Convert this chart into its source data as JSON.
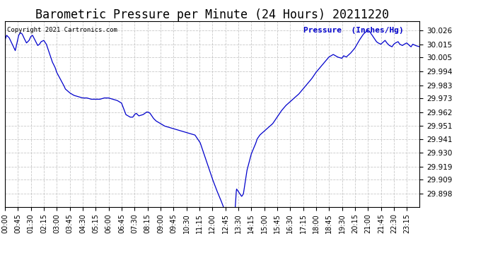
{
  "title": "Barometric Pressure per Minute (24 Hours) 20211220",
  "title_fontsize": 12,
  "copyright_text": "Copyright 2021 Cartronics.com",
  "legend_text": "Pressure  (Inches/Hg)",
  "line_color": "#0000CC",
  "background_color": "#FFFFFF",
  "grid_color": "#BBBBBB",
  "yticks": [
    29.898,
    29.909,
    29.919,
    29.93,
    29.941,
    29.951,
    29.962,
    29.973,
    29.983,
    29.994,
    30.005,
    30.015,
    30.026
  ],
  "ymin": 29.888,
  "ymax": 30.033,
  "xtick_labels": [
    "00:00",
    "00:45",
    "01:30",
    "02:15",
    "03:00",
    "03:45",
    "04:30",
    "05:15",
    "06:00",
    "06:45",
    "07:30",
    "08:15",
    "09:00",
    "09:45",
    "10:30",
    "11:15",
    "12:00",
    "12:45",
    "13:30",
    "14:15",
    "15:00",
    "15:45",
    "16:30",
    "17:15",
    "18:00",
    "18:45",
    "19:30",
    "20:15",
    "21:00",
    "21:45",
    "22:30",
    "23:15"
  ],
  "waypoints": [
    [
      0.0,
      30.018
    ],
    [
      0.1,
      30.022
    ],
    [
      0.25,
      30.02
    ],
    [
      0.5,
      30.013
    ],
    [
      0.6,
      30.01
    ],
    [
      0.7,
      30.016
    ],
    [
      0.8,
      30.022
    ],
    [
      0.9,
      30.024
    ],
    [
      1.0,
      30.023
    ],
    [
      1.1,
      30.02
    ],
    [
      1.25,
      30.016
    ],
    [
      1.4,
      30.018
    ],
    [
      1.5,
      30.021
    ],
    [
      1.6,
      30.022
    ],
    [
      1.75,
      30.018
    ],
    [
      1.9,
      30.014
    ],
    [
      2.0,
      30.015
    ],
    [
      2.1,
      30.017
    ],
    [
      2.25,
      30.018
    ],
    [
      2.4,
      30.015
    ],
    [
      2.5,
      30.011
    ],
    [
      2.6,
      30.007
    ],
    [
      2.75,
      30.001
    ],
    [
      2.9,
      29.997
    ],
    [
      3.0,
      29.993
    ],
    [
      3.2,
      29.988
    ],
    [
      3.4,
      29.983
    ],
    [
      3.5,
      29.98
    ],
    [
      3.75,
      29.977
    ],
    [
      4.0,
      29.975
    ],
    [
      4.25,
      29.974
    ],
    [
      4.5,
      29.973
    ],
    [
      4.75,
      29.973
    ],
    [
      5.0,
      29.972
    ],
    [
      5.25,
      29.972
    ],
    [
      5.5,
      29.972
    ],
    [
      5.75,
      29.973
    ],
    [
      6.0,
      29.973
    ],
    [
      6.25,
      29.972
    ],
    [
      6.5,
      29.971
    ],
    [
      6.75,
      29.969
    ],
    [
      7.0,
      29.96
    ],
    [
      7.25,
      29.958
    ],
    [
      7.4,
      29.958
    ],
    [
      7.5,
      29.96
    ],
    [
      7.6,
      29.961
    ],
    [
      7.75,
      29.959
    ],
    [
      8.0,
      29.96
    ],
    [
      8.1,
      29.961
    ],
    [
      8.2,
      29.962
    ],
    [
      8.3,
      29.962
    ],
    [
      8.4,
      29.961
    ],
    [
      8.5,
      29.959
    ],
    [
      8.6,
      29.957
    ],
    [
      8.75,
      29.955
    ],
    [
      9.0,
      29.953
    ],
    [
      9.25,
      29.951
    ],
    [
      9.5,
      29.95
    ],
    [
      9.75,
      29.949
    ],
    [
      10.0,
      29.948
    ],
    [
      10.25,
      29.947
    ],
    [
      10.5,
      29.946
    ],
    [
      10.75,
      29.945
    ],
    [
      11.0,
      29.944
    ],
    [
      11.1,
      29.942
    ],
    [
      11.2,
      29.94
    ],
    [
      11.3,
      29.938
    ],
    [
      11.5,
      29.93
    ],
    [
      11.75,
      29.92
    ],
    [
      12.0,
      29.91
    ],
    [
      12.25,
      29.901
    ],
    [
      12.5,
      29.893
    ],
    [
      12.75,
      29.884
    ],
    [
      13.0,
      29.877
    ],
    [
      13.25,
      29.872
    ],
    [
      13.4,
      29.902
    ],
    [
      13.5,
      29.9
    ],
    [
      13.6,
      29.898
    ],
    [
      13.7,
      29.896
    ],
    [
      13.8,
      29.898
    ],
    [
      14.0,
      29.916
    ],
    [
      14.25,
      29.929
    ],
    [
      14.4,
      29.934
    ],
    [
      14.5,
      29.937
    ],
    [
      14.6,
      29.941
    ],
    [
      14.75,
      29.944
    ],
    [
      15.0,
      29.947
    ],
    [
      15.25,
      29.95
    ],
    [
      15.5,
      29.953
    ],
    [
      15.75,
      29.958
    ],
    [
      16.0,
      29.963
    ],
    [
      16.25,
      29.967
    ],
    [
      16.5,
      29.97
    ],
    [
      16.75,
      29.973
    ],
    [
      17.0,
      29.976
    ],
    [
      17.25,
      29.98
    ],
    [
      17.5,
      29.984
    ],
    [
      17.75,
      29.988
    ],
    [
      18.0,
      29.993
    ],
    [
      18.25,
      29.997
    ],
    [
      18.5,
      30.001
    ],
    [
      18.75,
      30.005
    ],
    [
      19.0,
      30.007
    ],
    [
      19.25,
      30.005
    ],
    [
      19.5,
      30.004
    ],
    [
      19.6,
      30.006
    ],
    [
      19.75,
      30.005
    ],
    [
      20.0,
      30.008
    ],
    [
      20.25,
      30.012
    ],
    [
      20.5,
      30.018
    ],
    [
      20.75,
      30.023
    ],
    [
      21.0,
      30.026
    ],
    [
      21.1,
      30.025
    ],
    [
      21.25,
      30.022
    ],
    [
      21.4,
      30.019
    ],
    [
      21.5,
      30.017
    ],
    [
      21.6,
      30.016
    ],
    [
      21.75,
      30.015
    ],
    [
      22.0,
      30.018
    ],
    [
      22.1,
      30.016
    ],
    [
      22.25,
      30.014
    ],
    [
      22.4,
      30.013
    ],
    [
      22.5,
      30.015
    ],
    [
      22.6,
      30.016
    ],
    [
      22.75,
      30.017
    ],
    [
      22.85,
      30.015
    ],
    [
      23.0,
      30.014
    ],
    [
      23.1,
      30.015
    ],
    [
      23.25,
      30.016
    ],
    [
      23.4,
      30.014
    ],
    [
      23.5,
      30.013
    ],
    [
      23.6,
      30.015
    ],
    [
      23.75,
      30.014
    ],
    [
      24.0,
      30.013
    ]
  ]
}
